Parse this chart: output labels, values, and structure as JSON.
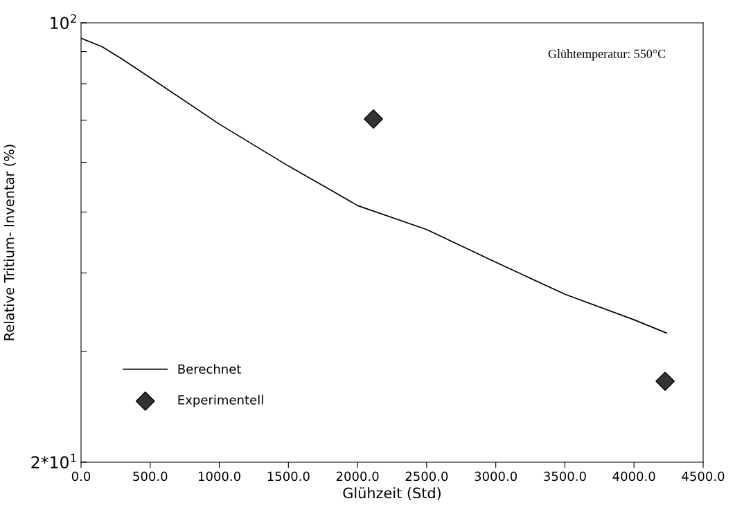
{
  "chart_data": {
    "type": "line",
    "xlabel": "Glühzeit (Std)",
    "ylabel": "Relative Tritium- Inventar (%)",
    "annotations": [
      "Glühtemperatur: 550°C"
    ],
    "series": [
      {
        "name": "Berechnet",
        "color": "#000000",
        "marker": "none",
        "line_style": "solid",
        "x": [
          0,
          150,
          300,
          500,
          1000,
          1500,
          1800,
          2000,
          2500,
          3000,
          3500,
          4000,
          4235
        ],
        "values": [
          94.5,
          91.7,
          87.5,
          81.8,
          69.0,
          59.2,
          54.3,
          51.2,
          46.9,
          41.6,
          37.0,
          33.7,
          32.1
        ]
      },
      {
        "name": "Experimentell",
        "type": "scatter",
        "color": "#333333",
        "marker": "diamond",
        "x": [
          2115,
          4225
        ],
        "values": [
          70.3,
          26.9
        ]
      }
    ],
    "log": "y",
    "xlim": [
      0,
      4500
    ],
    "ylim": [
      20,
      100
    ],
    "xticks": [
      {
        "value": 0,
        "label": "0.0"
      },
      {
        "value": 500,
        "label": "500.0"
      },
      {
        "value": 1000,
        "label": "1000.0"
      },
      {
        "value": 1500,
        "label": "1500.0"
      },
      {
        "value": 2000,
        "label": "2000.0"
      },
      {
        "value": 2500,
        "label": "2500.0"
      },
      {
        "value": 3000,
        "label": "3000.0"
      },
      {
        "value": 3500,
        "label": "3500.0"
      },
      {
        "value": 4000,
        "label": "4000.0"
      },
      {
        "value": 4500,
        "label": "4500.0"
      }
    ],
    "yticks": [
      {
        "value": 20,
        "label": "2*10$^{1}$"
      },
      {
        "value": 30,
        "label": null
      },
      {
        "value": 40,
        "label": null
      },
      {
        "value": 50,
        "label": null
      },
      {
        "value": 60,
        "label": null
      },
      {
        "value": 70,
        "label": null
      },
      {
        "value": 80,
        "label": null
      },
      {
        "value": 90,
        "label": null
      },
      {
        "value": 100,
        "label": "10$^{2}$"
      }
    ],
    "grid": false,
    "legend": "bottom left"
  }
}
